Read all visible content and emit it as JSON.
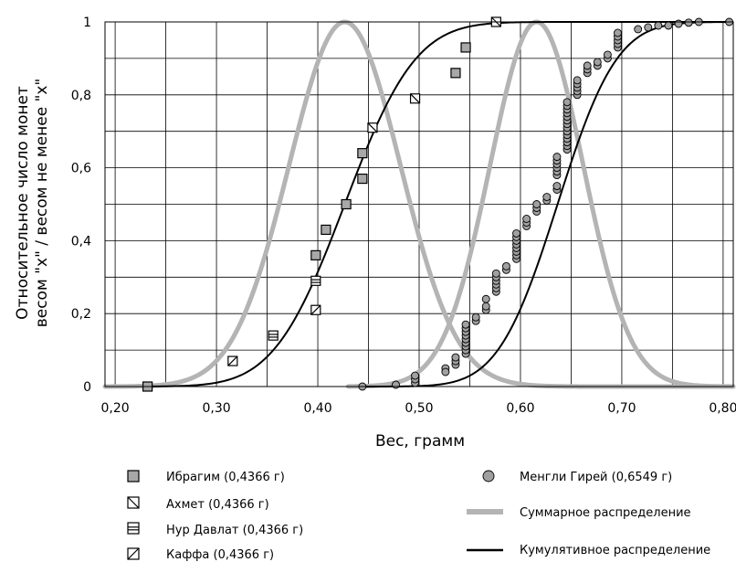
{
  "chart_data": {
    "type": "scatter",
    "xlabel": "Вес, грамм",
    "ylabel_line1": "Относительное число монет",
    "ylabel_line2": "весом \"х\" / весом не менее \"х\"",
    "xlim": [
      0.19,
      0.81
    ],
    "ylim": [
      0,
      1
    ],
    "x_ticks": [
      0.2,
      0.3,
      0.4,
      0.5,
      0.6,
      0.7,
      0.8
    ],
    "x_tick_labels": [
      "0,20",
      "0,30",
      "0,40",
      "0,50",
      "0,60",
      "0,70",
      "0,80"
    ],
    "y_ticks": [
      0,
      0.2,
      0.4,
      0.6,
      0.8,
      1
    ],
    "y_tick_labels": [
      "0",
      "0,2",
      "0,4",
      "0,6",
      "0,8",
      "1"
    ],
    "grid": true,
    "series": [
      {
        "name": "Ибрагим  (0,4366 г)",
        "marker": "square-filled",
        "color": "#a8a8a8",
        "points": [
          [
            0.232,
            0
          ],
          [
            0.398,
            0.36
          ],
          [
            0.408,
            0.43
          ],
          [
            0.428,
            0.5
          ],
          [
            0.444,
            0.57
          ],
          [
            0.444,
            0.64
          ],
          [
            0.536,
            0.86
          ],
          [
            0.546,
            0.93
          ]
        ]
      },
      {
        "name": "Ахмет  (0,4366 г)",
        "marker": "square-backslash",
        "color": "#000000",
        "points": [
          [
            0.454,
            0.71
          ],
          [
            0.496,
            0.79
          ],
          [
            0.576,
            1.0
          ]
        ]
      },
      {
        "name": "Нур Давлат  (0,4366 г)",
        "marker": "square-double-bar",
        "color": "#000000",
        "points": [
          [
            0.356,
            0.14
          ],
          [
            0.398,
            0.29
          ]
        ]
      },
      {
        "name": "Каффа  (0,4366 г)",
        "marker": "square-slash",
        "color": "#000000",
        "points": [
          [
            0.316,
            0.07
          ],
          [
            0.398,
            0.21
          ]
        ]
      },
      {
        "name": "Менгли Гирей (0,6549 г)",
        "marker": "circle",
        "color": "#a0a0a0",
        "points": [
          [
            0.444,
            0.0
          ],
          [
            0.477,
            0.005
          ],
          [
            0.496,
            0.01
          ],
          [
            0.496,
            0.02
          ],
          [
            0.496,
            0.03
          ],
          [
            0.526,
            0.05
          ],
          [
            0.526,
            0.04
          ],
          [
            0.536,
            0.06
          ],
          [
            0.536,
            0.07
          ],
          [
            0.536,
            0.08
          ],
          [
            0.546,
            0.09
          ],
          [
            0.546,
            0.1
          ],
          [
            0.546,
            0.11
          ],
          [
            0.546,
            0.12
          ],
          [
            0.546,
            0.13
          ],
          [
            0.546,
            0.14
          ],
          [
            0.546,
            0.15
          ],
          [
            0.546,
            0.16
          ],
          [
            0.546,
            0.17
          ],
          [
            0.556,
            0.18
          ],
          [
            0.556,
            0.19
          ],
          [
            0.566,
            0.21
          ],
          [
            0.566,
            0.22
          ],
          [
            0.566,
            0.24
          ],
          [
            0.576,
            0.26
          ],
          [
            0.576,
            0.27
          ],
          [
            0.576,
            0.28
          ],
          [
            0.576,
            0.29
          ],
          [
            0.576,
            0.3
          ],
          [
            0.576,
            0.31
          ],
          [
            0.586,
            0.32
          ],
          [
            0.586,
            0.33
          ],
          [
            0.596,
            0.35
          ],
          [
            0.596,
            0.36
          ],
          [
            0.596,
            0.37
          ],
          [
            0.596,
            0.38
          ],
          [
            0.596,
            0.39
          ],
          [
            0.596,
            0.4
          ],
          [
            0.596,
            0.41
          ],
          [
            0.596,
            0.42
          ],
          [
            0.606,
            0.44
          ],
          [
            0.606,
            0.45
          ],
          [
            0.606,
            0.46
          ],
          [
            0.616,
            0.48
          ],
          [
            0.616,
            0.49
          ],
          [
            0.616,
            0.5
          ],
          [
            0.626,
            0.51
          ],
          [
            0.626,
            0.52
          ],
          [
            0.636,
            0.54
          ],
          [
            0.636,
            0.55
          ],
          [
            0.636,
            0.58
          ],
          [
            0.636,
            0.59
          ],
          [
            0.636,
            0.6
          ],
          [
            0.636,
            0.61
          ],
          [
            0.636,
            0.62
          ],
          [
            0.636,
            0.63
          ],
          [
            0.646,
            0.65
          ],
          [
            0.646,
            0.66
          ],
          [
            0.646,
            0.67
          ],
          [
            0.646,
            0.68
          ],
          [
            0.646,
            0.69
          ],
          [
            0.646,
            0.7
          ],
          [
            0.646,
            0.71
          ],
          [
            0.646,
            0.72
          ],
          [
            0.646,
            0.73
          ],
          [
            0.646,
            0.74
          ],
          [
            0.646,
            0.75
          ],
          [
            0.646,
            0.76
          ],
          [
            0.646,
            0.77
          ],
          [
            0.646,
            0.78
          ],
          [
            0.656,
            0.8
          ],
          [
            0.656,
            0.81
          ],
          [
            0.656,
            0.82
          ],
          [
            0.656,
            0.83
          ],
          [
            0.656,
            0.84
          ],
          [
            0.666,
            0.86
          ],
          [
            0.666,
            0.87
          ],
          [
            0.666,
            0.88
          ],
          [
            0.676,
            0.88
          ],
          [
            0.676,
            0.89
          ],
          [
            0.686,
            0.9
          ],
          [
            0.686,
            0.91
          ],
          [
            0.696,
            0.93
          ],
          [
            0.696,
            0.94
          ],
          [
            0.696,
            0.95
          ],
          [
            0.696,
            0.96
          ],
          [
            0.696,
            0.97
          ],
          [
            0.716,
            0.98
          ],
          [
            0.726,
            0.985
          ],
          [
            0.736,
            0.99
          ],
          [
            0.746,
            0.99
          ],
          [
            0.756,
            0.995
          ],
          [
            0.766,
            0.998
          ],
          [
            0.776,
            1.0
          ],
          [
            0.806,
            1.0
          ]
        ]
      }
    ],
    "distribution_curves": {
      "name": "Суммарное распределение",
      "color": "#b4b4b4",
      "curves": [
        {
          "mean": 0.4266,
          "sigma": 0.055,
          "x_range": [
            0.19,
            0.81
          ]
        },
        {
          "mean": 0.616,
          "sigma": 0.046,
          "x_range": [
            0.43,
            0.81
          ]
        }
      ]
    },
    "cumulative_curves": {
      "name": "Кумулятивное распределение",
      "color": "#000000",
      "curves": [
        {
          "mean": 0.4266,
          "sigma": 0.055,
          "x_range": [
            0.232,
            0.81
          ]
        },
        {
          "mean": 0.6366,
          "sigma": 0.046,
          "x_range": [
            0.444,
            0.81
          ]
        }
      ]
    }
  }
}
